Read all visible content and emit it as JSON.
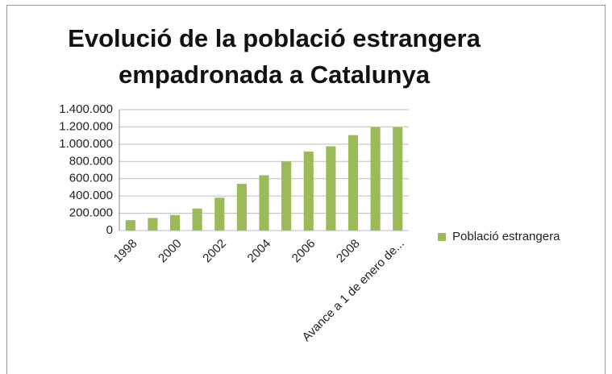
{
  "chart_data": {
    "type": "bar",
    "title": [
      "Evolució de la població estrangera",
      "empadronada  a Catalunya"
    ],
    "categories": [
      "1998",
      null,
      "2000",
      null,
      "2002",
      null,
      "2004",
      null,
      "2006",
      null,
      "2008",
      null,
      "Avance a 1 de enero de..."
    ],
    "series": [
      {
        "name": "Població estrangera",
        "color": "#9bbb59",
        "values": [
          120000,
          145000,
          180000,
          255000,
          380000,
          540000,
          640000,
          800000,
          915000,
          975000,
          1105000,
          1195000,
          1195000
        ]
      }
    ],
    "ylim": [
      0,
      1400000
    ],
    "yticks": [
      0,
      {
        "value": 200000,
        "label": "200.000"
      },
      {
        "value": 400000,
        "label": "400.000"
      },
      {
        "value": 600000,
        "label": "600.000"
      },
      {
        "value": 800000,
        "label": "800.000"
      },
      {
        "value": 1000000,
        "label": "1.000.000"
      },
      {
        "value": 1200000,
        "label": "1.200.000"
      },
      {
        "value": 1400000,
        "label": "1.400.000"
      }
    ],
    "grid": true,
    "legend": "right"
  }
}
